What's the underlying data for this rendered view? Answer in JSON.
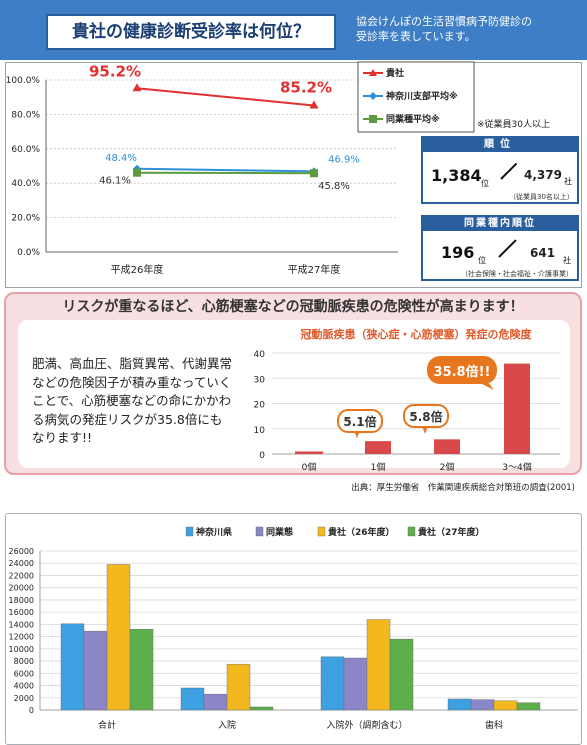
{
  "header": {
    "title": "貴社の健康診断受診率は何位？",
    "subtitle_lines": [
      "協会けんぽの生活習慣病予防健診の",
      "受診率を表しています。"
    ]
  },
  "ranking": {
    "rank_label": "順位",
    "rank_value": "1,384",
    "rank_unit": "位",
    "rank_total": "4,379",
    "rank_total_unit": "社",
    "rank_note": "（従業員30名以上）",
    "industry_label": "同業種内順位",
    "industry_value": "196",
    "industry_unit": "位",
    "industry_total": "641",
    "industry_total_unit": "社",
    "industry_note": "（社会保険・社会福祉・介護事業）",
    "employee_note": "※従業員30人以上"
  },
  "risk": {
    "title": "リスクが重なるほど、心筋梗塞などの冠動脈疾患の危険性が高まります！",
    "body_lines": [
      "肥満、高血圧、脂質異常、代謝異常",
      "などの危険因子が積み重なっていく",
      "ことで、心筋梗塞などの命にかかわ",
      "る病気の発症リスクが35.8倍にも",
      "なります!!"
    ],
    "source": "出典：厚生労働省　作業関連疾病総合対策班の調査(2001)"
  },
  "colors": {
    "header_bg": "#3d7ec6",
    "company": "#e03030",
    "kanagawa": "#2e8fd8",
    "industry": "#5e9a3e",
    "risk_bar": "#d84a4a",
    "callout": "#e8761e"
  },
  "chart_data": [
    {
      "type": "line",
      "x": [
        "平成26年度",
        "平成27年度"
      ],
      "ylim": [
        0,
        100
      ],
      "yticks": [
        "0.0%",
        "20.0%",
        "40.0%",
        "60.0%",
        "80.0%",
        "100.0%"
      ],
      "series": [
        {
          "name": "貴社",
          "values": [
            95.2,
            85.2
          ],
          "labels": [
            "95.2%",
            "85.2%"
          ],
          "color": "#e03030"
        },
        {
          "name": "神奈川支部平均※",
          "values": [
            48.4,
            46.9
          ],
          "labels": [
            "48.4%",
            "46.9%"
          ],
          "color": "#2e8fd8"
        },
        {
          "name": "同業種平均※",
          "values": [
            46.1,
            45.8
          ],
          "labels": [
            "46.1%",
            "45.8%"
          ],
          "color": "#5e9a3e"
        }
      ]
    },
    {
      "type": "bar",
      "title": "冠動脈疾患（狭心症・心筋梗塞）発症の危険度",
      "categories": [
        "0個",
        "1個",
        "2個",
        "3～4個"
      ],
      "values": [
        1.0,
        5.1,
        5.8,
        35.8
      ],
      "callouts": [
        "5.1倍",
        "5.8倍",
        "35.8倍!!"
      ],
      "ylim": [
        0,
        40
      ],
      "yticks": [
        "0",
        "10",
        "20",
        "30",
        "40"
      ]
    },
    {
      "type": "bar",
      "categories": [
        "合計",
        "入院",
        "入院外（調剤含む）",
        "歯科"
      ],
      "ylim": [
        0,
        26000
      ],
      "yticks": [
        "0",
        "2000",
        "4000",
        "6000",
        "8000",
        "10000",
        "12000",
        "14000",
        "16000",
        "18000",
        "20000",
        "22000",
        "24000",
        "26000"
      ],
      "legend_position": "top",
      "series": [
        {
          "name": "神奈川県",
          "values": [
            14100,
            3600,
            8700,
            1800
          ],
          "color": "#3da0e0"
        },
        {
          "name": "同業態",
          "values": [
            12900,
            2600,
            8500,
            1700
          ],
          "color": "#8a86c8"
        },
        {
          "name": "貴社（26年度）",
          "values": [
            23800,
            7500,
            14800,
            1500
          ],
          "color": "#f2b81e"
        },
        {
          "name": "貴社（27年度）",
          "values": [
            13200,
            500,
            11600,
            1200
          ],
          "color": "#5fae4c"
        }
      ]
    }
  ]
}
